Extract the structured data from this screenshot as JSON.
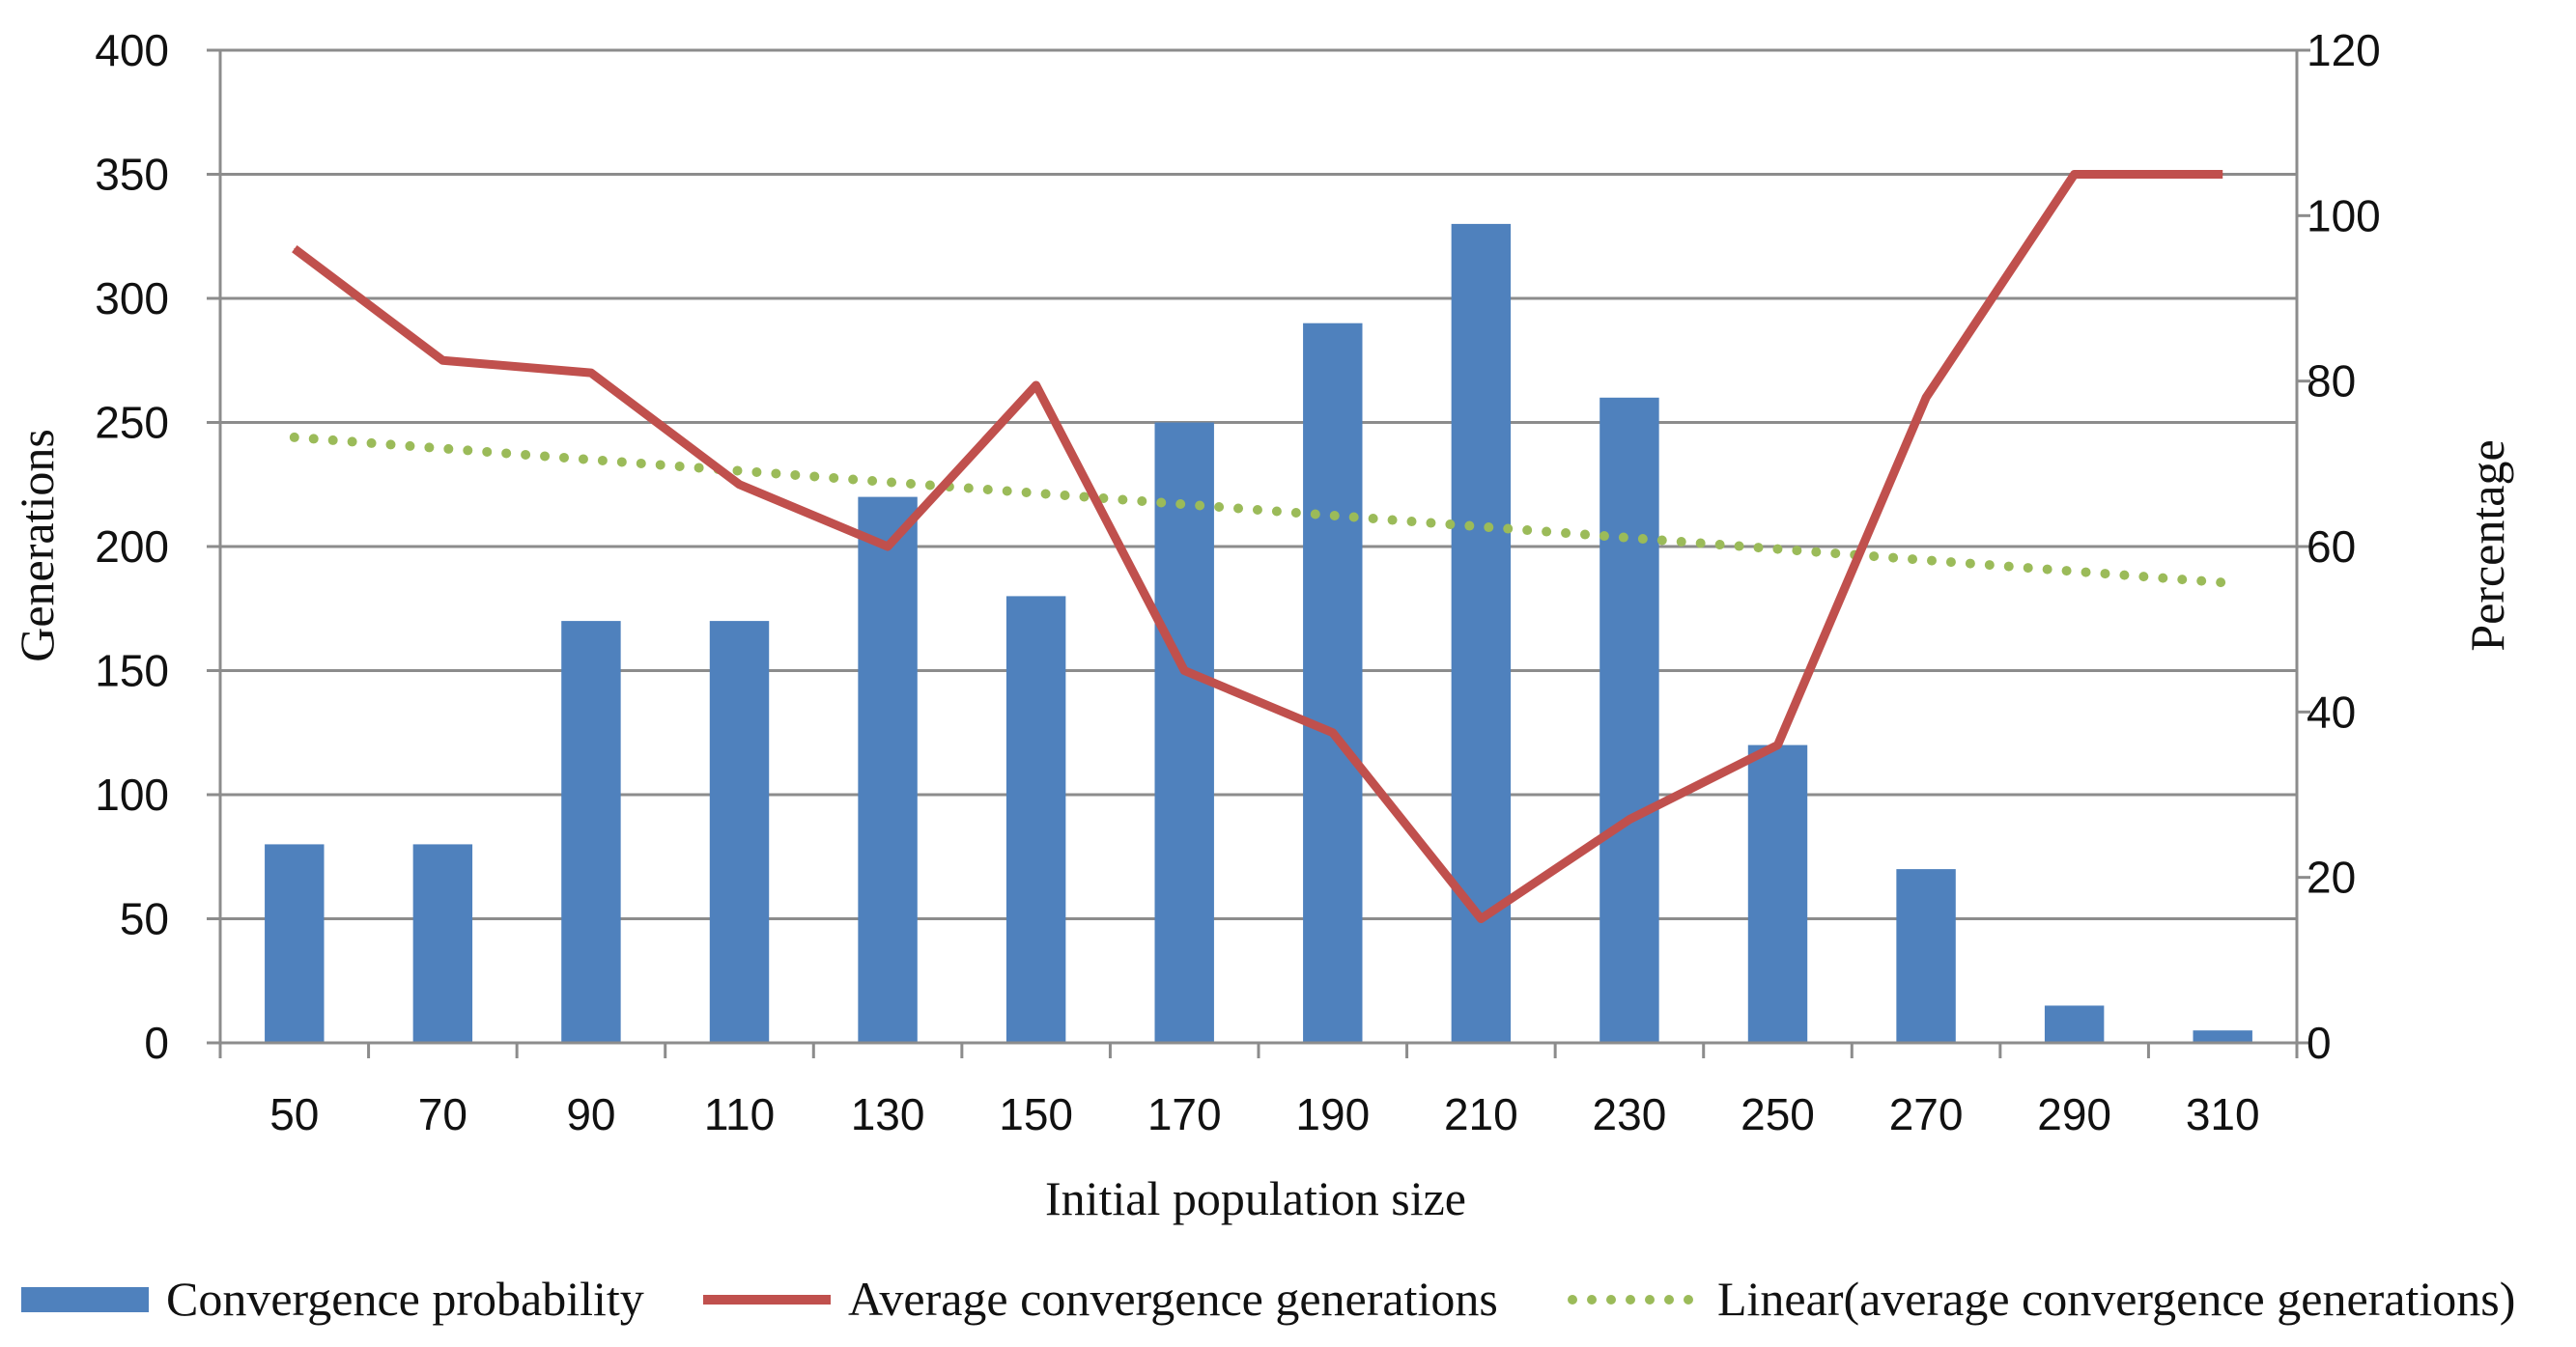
{
  "chart_data": {
    "type": "bar+line",
    "title": "",
    "xlabel": "Initial population size",
    "ylabel_left": "Generations",
    "ylabel_right": "Percentage",
    "categories": [
      "50",
      "70",
      "90",
      "110",
      "130",
      "150",
      "170",
      "190",
      "210",
      "230",
      "250",
      "270",
      "290",
      "310"
    ],
    "ylim_left": [
      0,
      400
    ],
    "yticks_left": [
      0,
      50,
      100,
      150,
      200,
      250,
      300,
      350,
      400
    ],
    "ylim_right": [
      0,
      120
    ],
    "yticks_right": [
      0,
      20,
      40,
      60,
      80,
      100,
      120
    ],
    "grid": true,
    "series": [
      {
        "name": "Convergence probability",
        "type": "bar",
        "axis": "right",
        "color": "#4F81BD",
        "values": [
          24,
          24,
          51,
          51,
          66,
          54,
          75,
          87,
          99,
          78,
          36,
          21,
          4.5,
          1.5
        ]
      },
      {
        "name": "Average convergence generations",
        "type": "line",
        "axis": "left",
        "color": "#C0504D",
        "values": [
          320,
          275,
          270,
          225,
          200,
          265,
          150,
          125,
          50,
          90,
          120,
          260,
          350,
          350
        ]
      },
      {
        "name": "Linear(average convergence generations)",
        "type": "trendline",
        "axis": "left",
        "style": "dotted",
        "color": "#9BBB59",
        "values": [
          244,
          239.5,
          235,
          230.5,
          226,
          221.5,
          217,
          212.5,
          208,
          203.5,
          199,
          194.5,
          190,
          185.5
        ]
      }
    ],
    "legend": [
      {
        "label": "Convergence probability",
        "icon": "bar-swatch"
      },
      {
        "label": "Average convergence generations",
        "icon": "line-swatch"
      },
      {
        "label": "Linear(average convergence generations)",
        "icon": "dotted-swatch"
      }
    ],
    "legend_position": "bottom"
  }
}
